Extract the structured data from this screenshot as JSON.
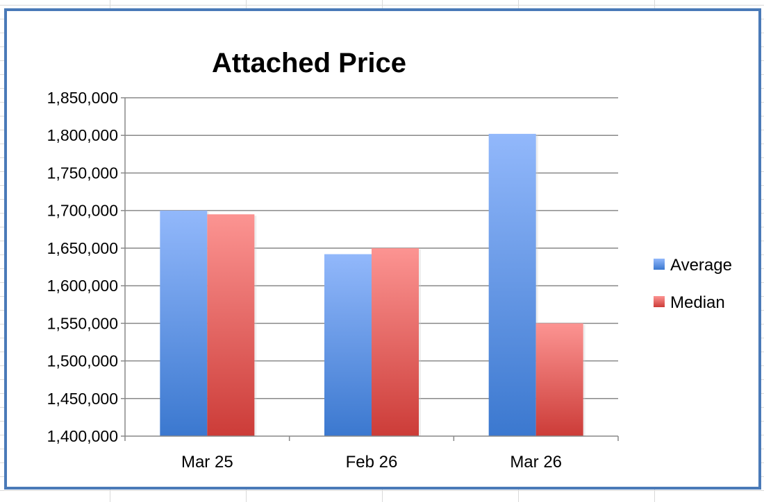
{
  "chart_data": {
    "type": "bar",
    "title": "Attached Price",
    "xlabel": "",
    "ylabel": "",
    "categories": [
      "Mar 25",
      "Feb 26",
      "Mar 26"
    ],
    "series": [
      {
        "name": "Average",
        "values": [
          1700000,
          1642000,
          1802000
        ],
        "color": "#5b8ee6"
      },
      {
        "name": "Median",
        "values": [
          1695000,
          1650000,
          1550000
        ],
        "color": "#e06060"
      }
    ],
    "ylim": [
      1400000,
      1850000
    ],
    "yticks": [
      "1,400,000",
      "1,450,000",
      "1,500,000",
      "1,550,000",
      "1,600,000",
      "1,650,000",
      "1,700,000",
      "1,750,000",
      "1,800,000",
      "1,850,000"
    ],
    "grid": true,
    "legend": "right"
  }
}
